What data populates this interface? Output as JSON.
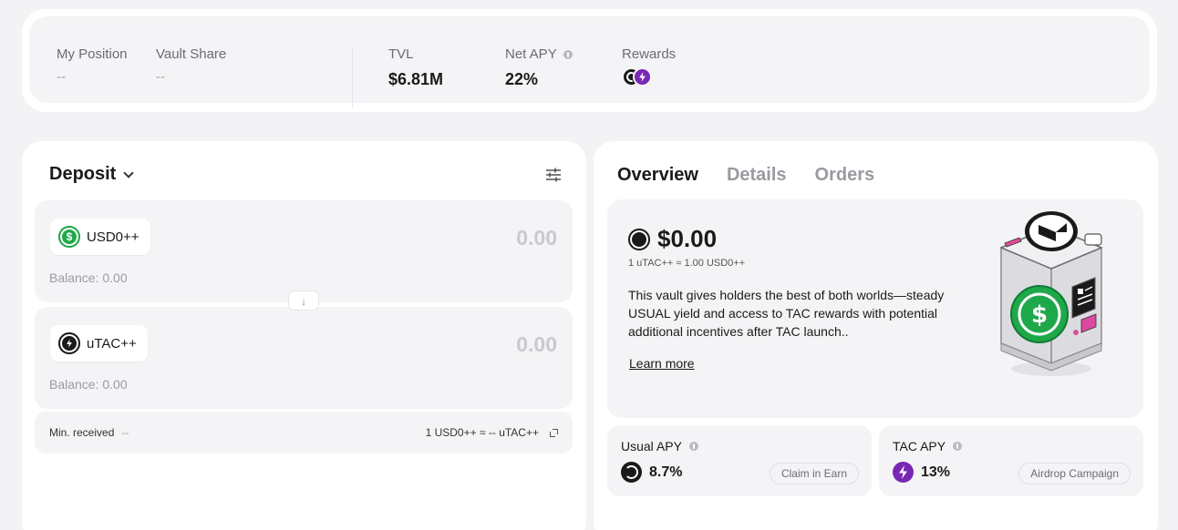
{
  "stats": {
    "my_position": {
      "label": "My Position",
      "value": "--"
    },
    "vault_share": {
      "label": "Vault Share",
      "value": "--"
    },
    "tvl": {
      "label": "TVL",
      "value": "$6.81M"
    },
    "net_apy": {
      "label": "Net APY",
      "value": "22%"
    },
    "rewards": {
      "label": "Rewards",
      "icons": [
        "usual-token-icon",
        "tac-token-icon"
      ]
    }
  },
  "deposit": {
    "title": "Deposit",
    "from": {
      "token": "USD0++",
      "amount": "0.00",
      "balance": "Balance: 0.00",
      "icon": "usd0-token-icon"
    },
    "to": {
      "token": "uTAC++",
      "amount": "0.00",
      "balance": "Balance: 0.00",
      "icon": "utac-token-icon"
    },
    "min_received_label": "Min. received",
    "min_received_value": "--",
    "rate": "1 USD0++ ≈ -- uTAC++"
  },
  "tabs": [
    "Overview",
    "Details",
    "Orders"
  ],
  "overview": {
    "price": "$0.00",
    "rate": "1 uTAC++ ≈ 1.00 USD0++",
    "description": "This vault gives holders the best of both worlds—steady USUAL yield and access to TAC rewards with potential additional incentives after TAC launch..",
    "learn_more": "Learn more"
  },
  "apy": {
    "usual": {
      "label": "Usual APY",
      "value": "8.7%",
      "button": "Claim in Earn"
    },
    "tac": {
      "label": "TAC APY",
      "value": "13%",
      "button": "Airdrop Campaign"
    }
  },
  "colors": {
    "accent_purple": "#7a26b5",
    "usd0_green": "#1fa84a",
    "panel_bg": "#f4f4f6"
  }
}
